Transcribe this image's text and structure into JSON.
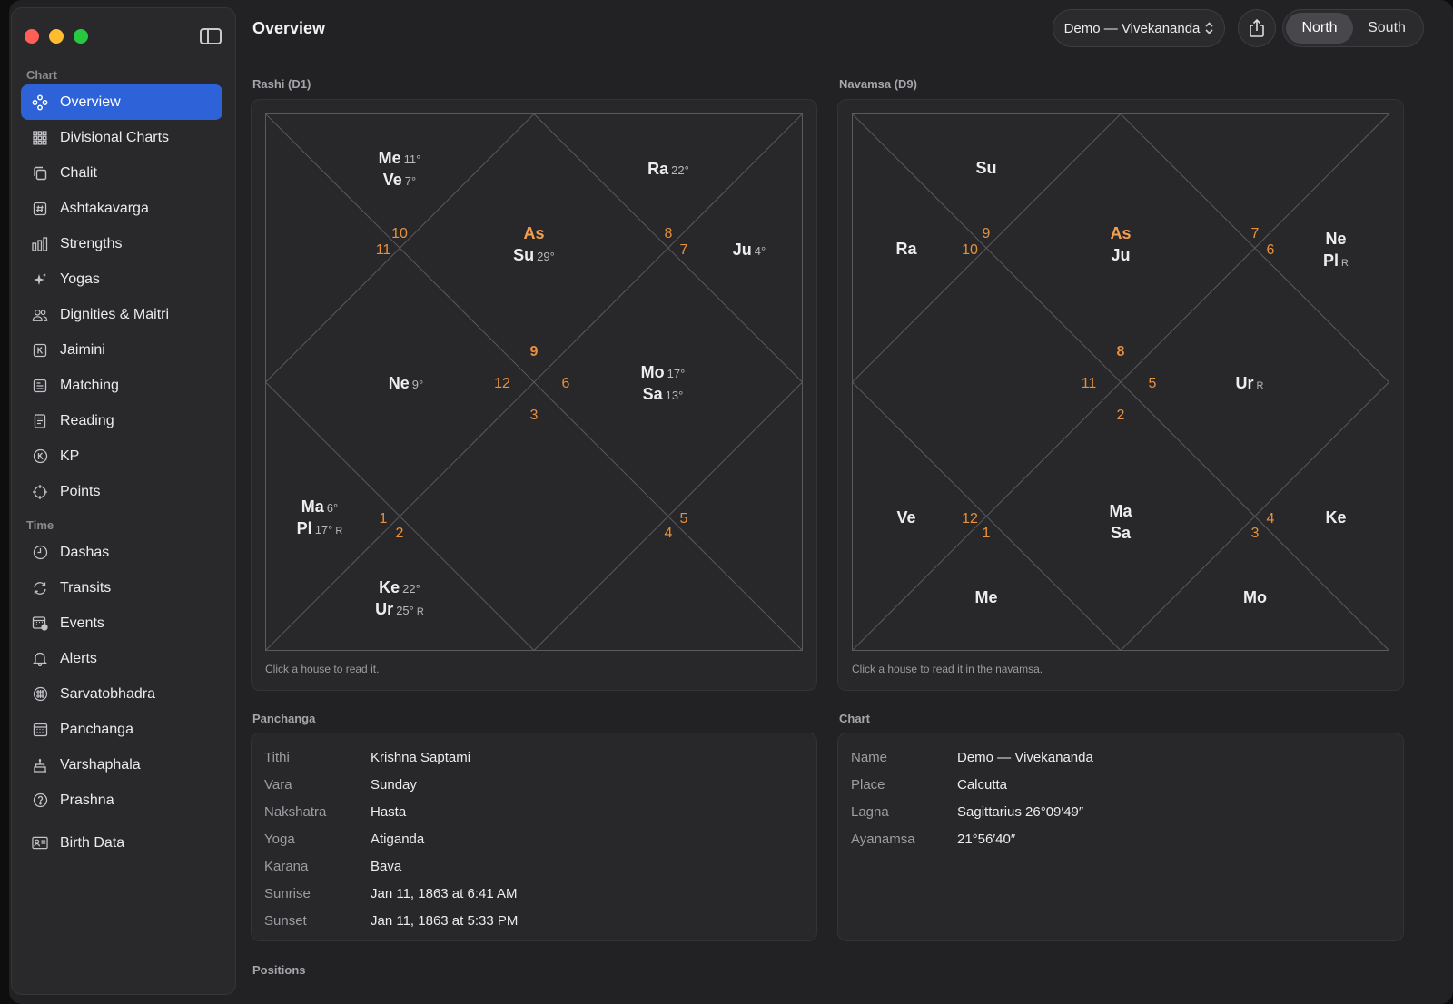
{
  "window": {
    "title": "Overview"
  },
  "toolbar": {
    "profile": "Demo — Vivekananda",
    "layout_options": [
      "North",
      "South"
    ],
    "layout_selected": "North"
  },
  "sidebar": {
    "section_chart": "Chart",
    "chart_items": [
      {
        "label": "Overview",
        "icon": "overview-icon"
      },
      {
        "label": "Divisional Charts",
        "icon": "grid-icon"
      },
      {
        "label": "Chalit",
        "icon": "copy-icon"
      },
      {
        "label": "Ashtakavarga",
        "icon": "hash-icon"
      },
      {
        "label": "Strengths",
        "icon": "bars-icon"
      },
      {
        "label": "Yogas",
        "icon": "sparkle-icon"
      },
      {
        "label": "Dignities & Maitri",
        "icon": "people-icon"
      },
      {
        "label": "Jaimini",
        "icon": "k-square-icon"
      },
      {
        "label": "Matching",
        "icon": "doc-icon"
      },
      {
        "label": "Reading",
        "icon": "book-icon"
      },
      {
        "label": "KP",
        "icon": "k-circle-icon"
      },
      {
        "label": "Points",
        "icon": "crosshair-icon"
      }
    ],
    "section_time": "Time",
    "time_items": [
      {
        "label": "Dashas",
        "icon": "clock-icon"
      },
      {
        "label": "Transits",
        "icon": "cycle-icon"
      },
      {
        "label": "Events",
        "icon": "calendar-badge-icon"
      },
      {
        "label": "Alerts",
        "icon": "bell-icon"
      },
      {
        "label": "Sarvatobhadra",
        "icon": "circle-grid-icon"
      },
      {
        "label": "Panchanga",
        "icon": "calendar-icon"
      },
      {
        "label": "Varshaphala",
        "icon": "cake-icon"
      },
      {
        "label": "Prashna",
        "icon": "question-icon"
      }
    ],
    "birth_data": {
      "label": "Birth Data",
      "icon": "id-card-icon"
    }
  },
  "rashi": {
    "heading": "Rashi (D1)",
    "hint": "Click a house to read it.",
    "numbers": [
      "10",
      "11",
      "9",
      "8",
      "7",
      "12",
      "6",
      "3",
      "1",
      "2",
      "5",
      "4"
    ],
    "asc_label": "As",
    "planets": [
      {
        "name": "Me",
        "deg": "11°"
      },
      {
        "name": "Ve",
        "deg": "7°"
      },
      {
        "name": "Ra",
        "deg": "22°"
      },
      {
        "name": "Su",
        "deg": "29°"
      },
      {
        "name": "Ju",
        "deg": "4°"
      },
      {
        "name": "Ne",
        "deg": "9°"
      },
      {
        "name": "Mo",
        "deg": "17°"
      },
      {
        "name": "Sa",
        "deg": "13°"
      },
      {
        "name": "Ma",
        "deg": "6°"
      },
      {
        "name": "Pl",
        "deg": "17°",
        "retro": "R"
      },
      {
        "name": "Ke",
        "deg": "22°"
      },
      {
        "name": "Ur",
        "deg": "25°",
        "retro": "R"
      }
    ]
  },
  "navamsa": {
    "heading": "Navamsa (D9)",
    "hint": "Click a house to read it in the navamsa.",
    "numbers": [
      "9",
      "10",
      "8",
      "7",
      "6",
      "11",
      "5",
      "2",
      "12",
      "1",
      "4",
      "3"
    ],
    "asc_label": "As",
    "planets": [
      "Su",
      "Ra",
      "Ju",
      "Ne",
      "Pl",
      "Ur",
      "Ve",
      "Ma",
      "Sa",
      "Ke",
      "Me",
      "Mo"
    ],
    "retro": "R"
  },
  "panchanga": {
    "heading": "Panchanga",
    "rows": [
      {
        "k": "Tithi",
        "v": "Krishna Saptami"
      },
      {
        "k": "Vara",
        "v": "Sunday"
      },
      {
        "k": "Nakshatra",
        "v": "Hasta"
      },
      {
        "k": "Yoga",
        "v": "Atiganda"
      },
      {
        "k": "Karana",
        "v": "Bava"
      },
      {
        "k": "Sunrise",
        "v": "Jan 11, 1863 at 6:41 AM"
      },
      {
        "k": "Sunset",
        "v": "Jan 11, 1863 at 5:33 PM"
      }
    ]
  },
  "chart_info": {
    "heading": "Chart",
    "rows": [
      {
        "k": "Name",
        "v": "Demo — Vivekananda"
      },
      {
        "k": "Place",
        "v": "Calcutta"
      },
      {
        "k": "Lagna",
        "v": "Sagittarius 26°09′49″"
      },
      {
        "k": "Ayanamsa",
        "v": "21°56′40″"
      }
    ]
  },
  "positions": {
    "heading": "Positions"
  },
  "colors": {
    "accent": "#2d62d8",
    "house_number": "#e8903c",
    "ascendant": "#f0a050"
  }
}
